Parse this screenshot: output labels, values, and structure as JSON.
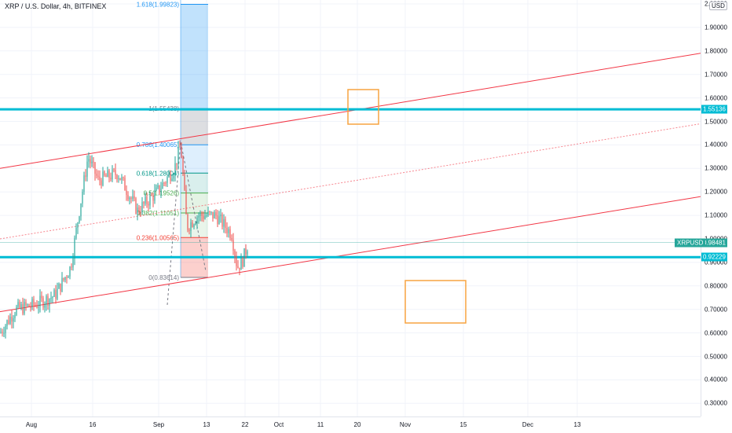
{
  "header": {
    "title": "XRP / U.S. Dollar, 4h, BITFINEX"
  },
  "price_axis": {
    "currency": "USD",
    "ticks": [
      "2.00000",
      "1.90000",
      "1.80000",
      "1.70000",
      "1.60000",
      "1.50000",
      "1.40000",
      "1.30000",
      "1.20000",
      "1.10000",
      "1.00000",
      "0.90000",
      "0.80000",
      "0.70000",
      "0.60000",
      "0.50000",
      "0.40000",
      "0.30000"
    ],
    "tick_values": [
      2.0,
      1.9,
      1.8,
      1.7,
      1.6,
      1.5,
      1.4,
      1.3,
      1.2,
      1.1,
      1.0,
      0.9,
      0.8,
      0.7,
      0.6,
      0.5,
      0.4,
      0.3
    ],
    "resistance_label": "1.55136",
    "resistance_value": 1.55136,
    "support_label": "0.92229",
    "support_value": 0.92229,
    "last_label": "0.98481",
    "last_value": 0.98481,
    "symbol": "XRPUSD"
  },
  "time_axis": {
    "ticks": [
      "Aug",
      "16",
      "Sep",
      "13",
      "22",
      "Oct",
      "11",
      "20",
      "Nov",
      "15",
      "Dec",
      "13"
    ]
  },
  "fibonacci": {
    "levels": [
      {
        "label": "1.618(1.99823)",
        "value": 1.99823,
        "color": "#2196f3"
      },
      {
        "label": "1(1.55438)",
        "value": 1.55438,
        "color": "#787b86"
      },
      {
        "label": "0.786(1.40065)",
        "value": 1.40065,
        "color": "#2196f3"
      },
      {
        "label": "0.618(1.28004)",
        "value": 1.28004,
        "color": "#009688"
      },
      {
        "label": "0.5(1.19526)",
        "value": 1.19526,
        "color": "#4caf50"
      },
      {
        "label": "0.382(1.11051)",
        "value": 1.11051,
        "color": "#4caf50"
      },
      {
        "label": "0.236(1.00565)",
        "value": 1.00565,
        "color": "#f44336"
      },
      {
        "label": "0(0.83614)",
        "value": 0.83614,
        "color": "#787b86"
      }
    ]
  },
  "colors": {
    "accent_line": "#00bcd4",
    "channel": "#f23645",
    "box": "#f7a440",
    "candle_up": "#26a69a",
    "candle_down": "#ef5350"
  }
}
